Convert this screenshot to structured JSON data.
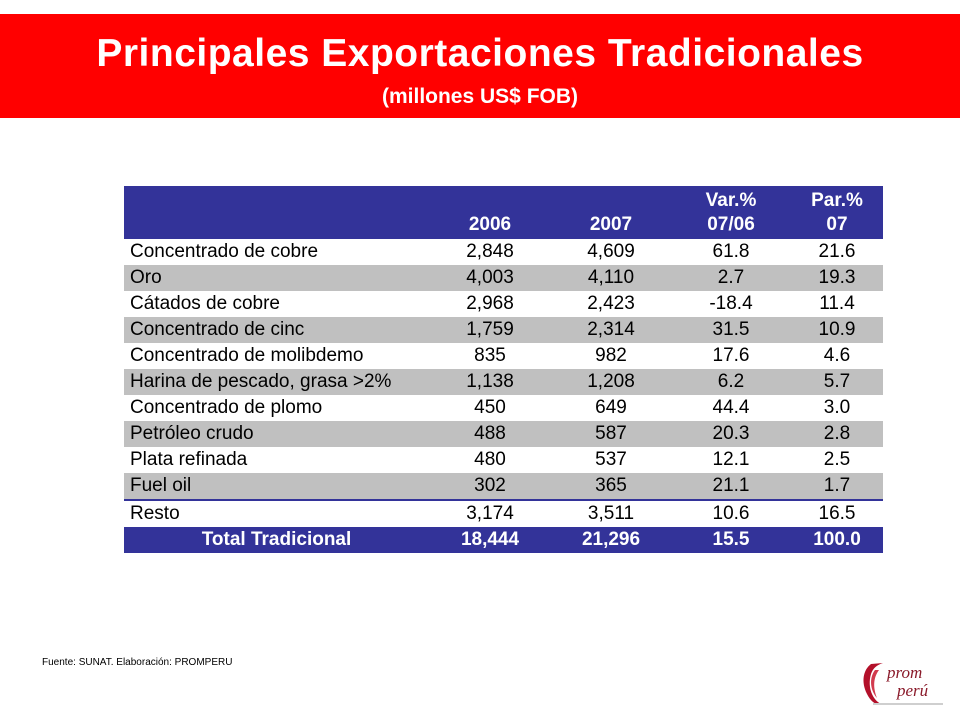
{
  "header": {
    "title": "Principales Exportaciones Tradicionales",
    "subtitle": "(millones US$ FOB)"
  },
  "table": {
    "columns": [
      "",
      "2006",
      "2007",
      "Var.%\n07/06",
      "Par.%\n07"
    ],
    "col_var_line1": "Var.%",
    "col_var_line2": "07/06",
    "col_par_line1": "Par.%",
    "col_par_line2": "07",
    "rows": [
      {
        "name": "Concentrado de cobre",
        "y2006": "2,848",
        "y2007": "4,609",
        "var": "61.8",
        "par": "21.6"
      },
      {
        "name": "Oro",
        "y2006": "4,003",
        "y2007": "4,110",
        "var": "2.7",
        "par": "19.3"
      },
      {
        "name": "Cátados de cobre",
        "y2006": "2,968",
        "y2007": "2,423",
        "var": "-18.4",
        "par": "11.4"
      },
      {
        "name": "Concentrado de cinc",
        "y2006": "1,759",
        "y2007": "2,314",
        "var": "31.5",
        "par": "10.9"
      },
      {
        "name": "Concentrado de molibdemo",
        "y2006": "835",
        "y2007": "982",
        "var": "17.6",
        "par": "4.6"
      },
      {
        "name": "Harina de pescado, grasa >2%",
        "y2006": "1,138",
        "y2007": "1,208",
        "var": "6.2",
        "par": "5.7"
      },
      {
        "name": "Concentrado de plomo",
        "y2006": "450",
        "y2007": "649",
        "var": "44.4",
        "par": "3.0"
      },
      {
        "name": "Petróleo crudo",
        "y2006": "488",
        "y2007": "587",
        "var": "20.3",
        "par": "2.8"
      },
      {
        "name": "Plata refinada",
        "y2006": "480",
        "y2007": "537",
        "var": "12.1",
        "par": "2.5"
      },
      {
        "name": "Fuel oil",
        "y2006": "302",
        "y2007": "365",
        "var": "21.1",
        "par": "1.7"
      },
      {
        "name": "Resto",
        "y2006": "3,174",
        "y2007": "3,511",
        "var": "10.6",
        "par": "16.5"
      }
    ],
    "total": {
      "name": "Total Tradicional",
      "y2006": "18,444",
      "y2007": "21,296",
      "var": "15.5",
      "par": "100.0"
    }
  },
  "footer": {
    "source": "Fuente: SUNAT.  Elaboración: PROMPERU",
    "logo_text_1": "prom",
    "logo_text_2": "perú"
  },
  "colors": {
    "banner": "#ff0000",
    "header_blue": "#333399",
    "stripe_gray": "#c0c0c0"
  }
}
